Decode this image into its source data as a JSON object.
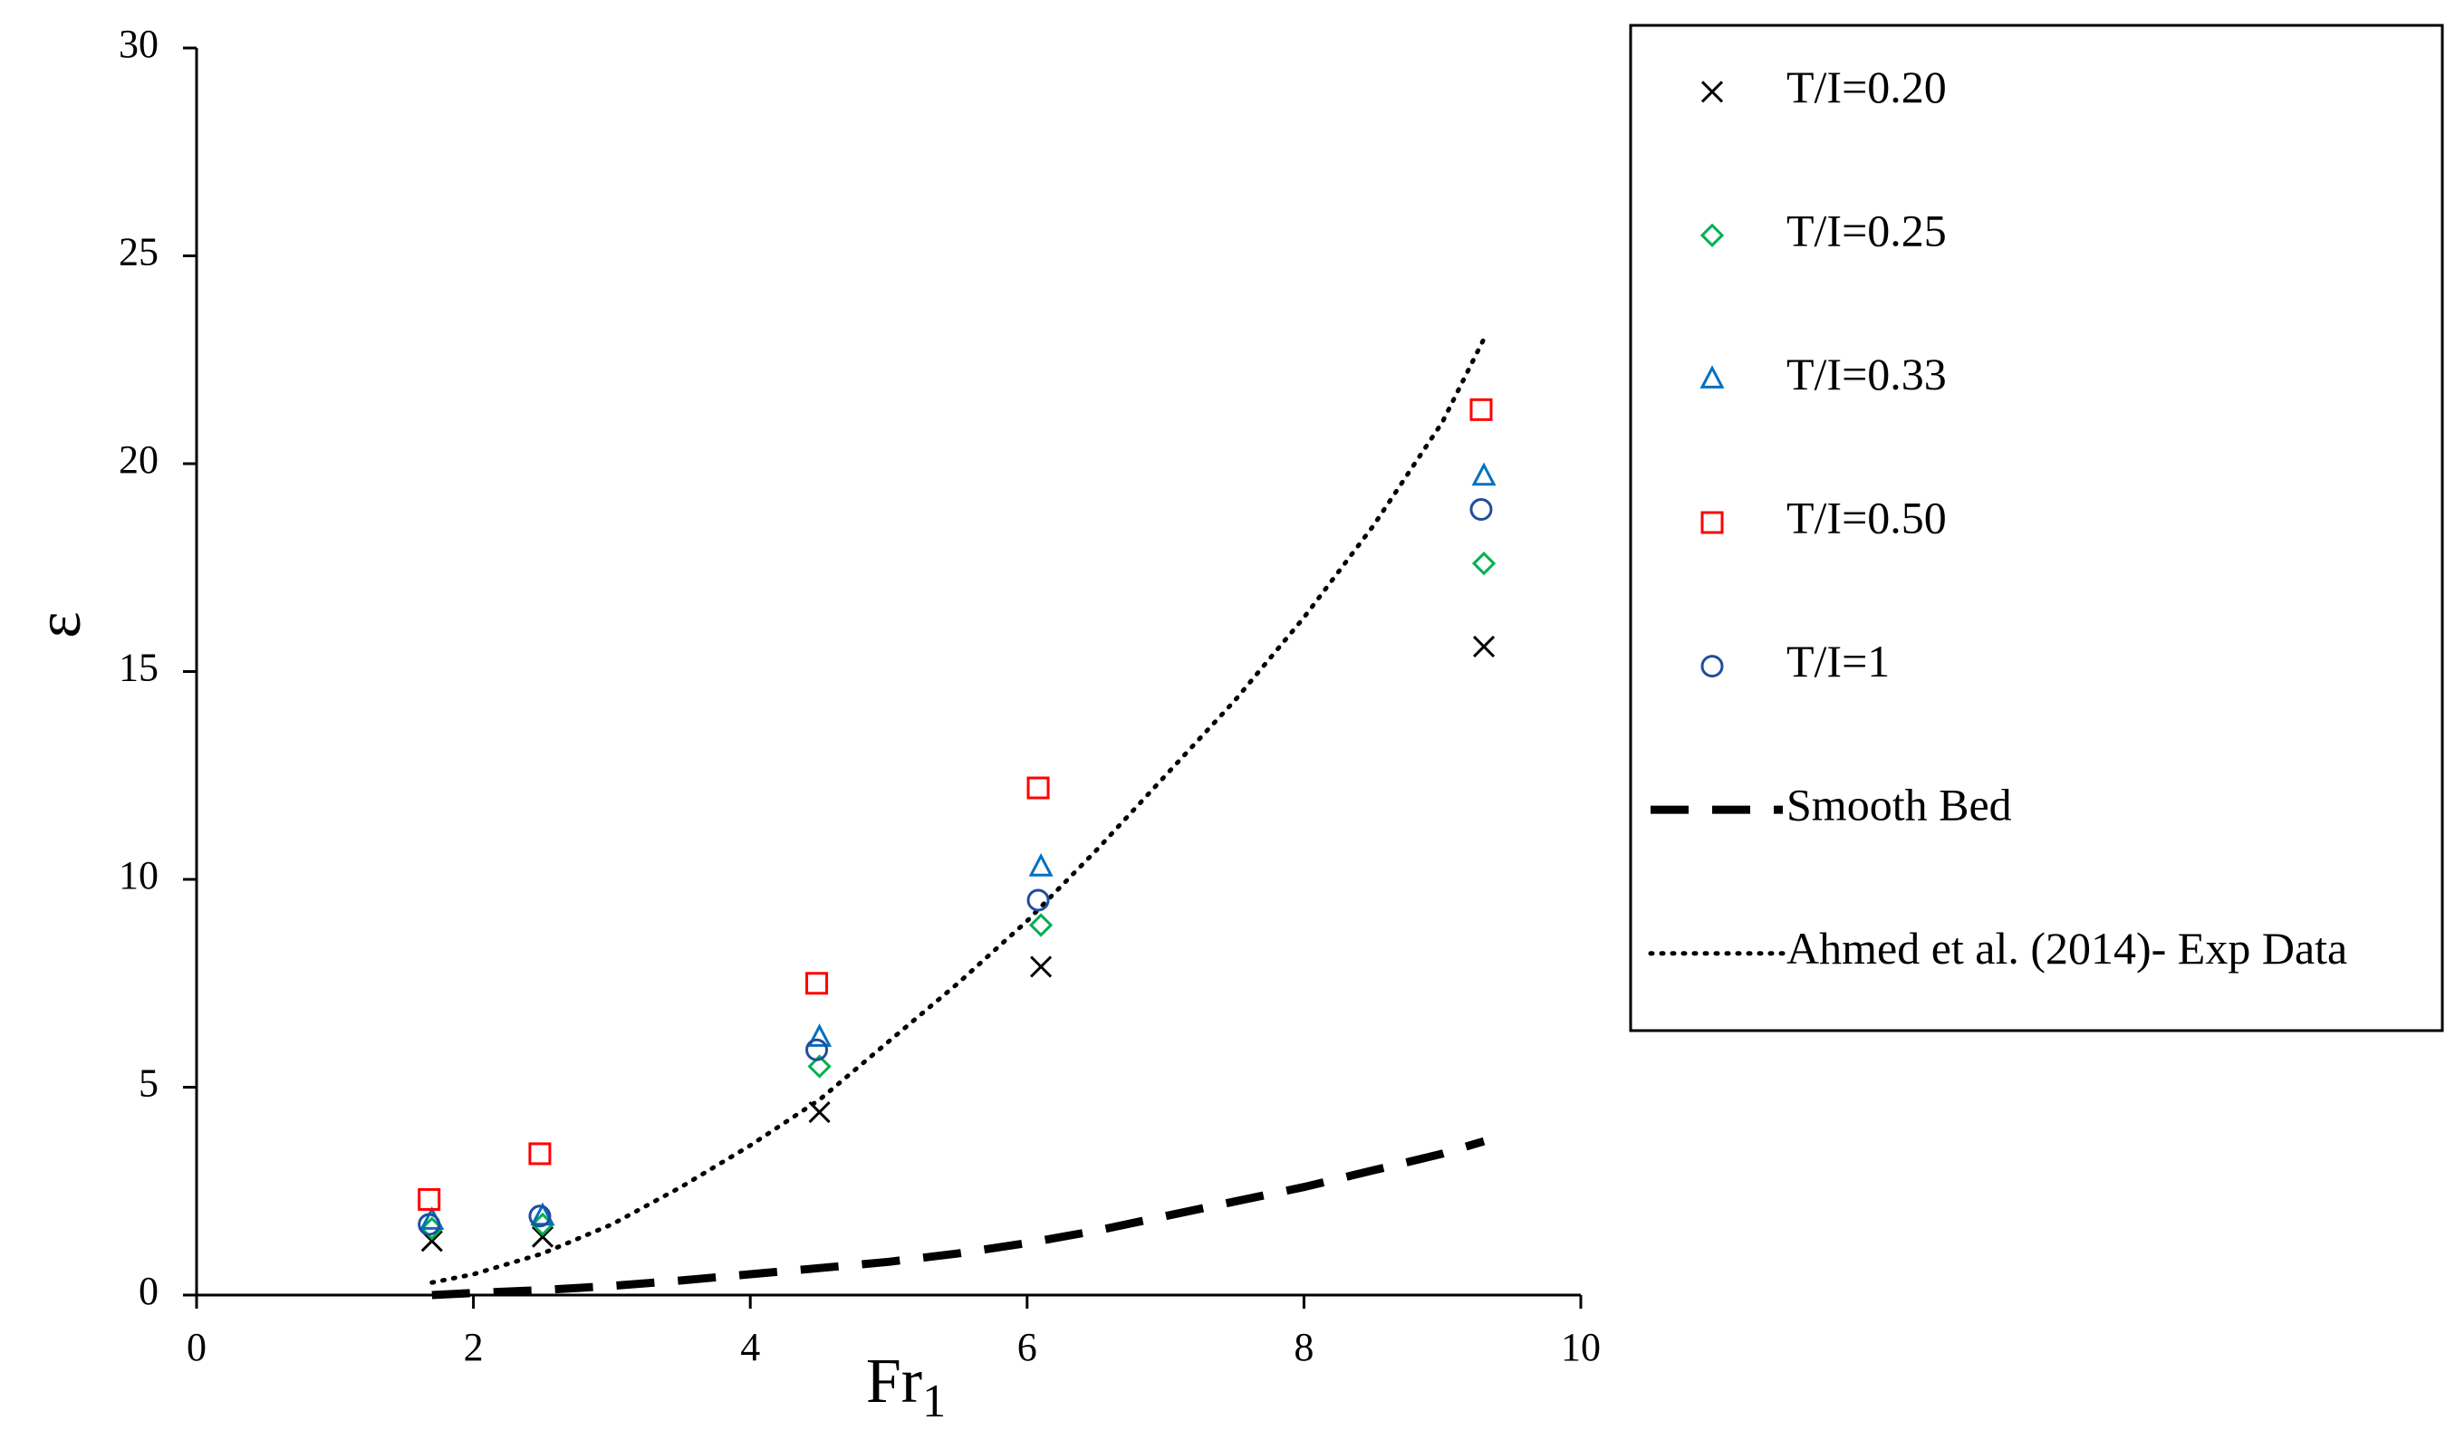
{
  "chart_data": {
    "type": "scatter",
    "title": "",
    "xlabel": "Fr",
    "xlabel_subscript": "1",
    "ylabel": "ε",
    "xlim": [
      0,
      10
    ],
    "ylim": [
      0,
      30
    ],
    "xticks": [
      0,
      2,
      4,
      6,
      8,
      10
    ],
    "yticks": [
      0,
      5,
      10,
      15,
      20,
      25,
      30
    ],
    "grid": false,
    "legend_position": "right",
    "series": [
      {
        "name": "T/I=0.20",
        "marker": "x",
        "color": "#000000",
        "x": [
          1.7,
          2.5,
          4.5,
          6.1,
          9.3
        ],
        "y": [
          1.3,
          1.4,
          4.4,
          7.9,
          15.6
        ]
      },
      {
        "name": "T/I=0.25",
        "marker": "diamond",
        "color": "#00b050",
        "x": [
          1.7,
          2.5,
          4.5,
          6.1,
          9.3
        ],
        "y": [
          1.6,
          1.7,
          5.5,
          8.9,
          17.6
        ]
      },
      {
        "name": "T/I=0.33",
        "marker": "triangle",
        "color": "#0070c0",
        "x": [
          1.7,
          2.5,
          4.5,
          6.1,
          9.3
        ],
        "y": [
          1.8,
          1.9,
          6.2,
          10.3,
          19.7
        ]
      },
      {
        "name": "T/I=0.50",
        "marker": "square",
        "color": "#ff0000",
        "x": [
          1.68,
          2.48,
          4.48,
          6.08,
          9.28
        ],
        "y": [
          2.3,
          3.4,
          7.5,
          12.2,
          21.3
        ]
      },
      {
        "name": "T/I=1",
        "marker": "circle",
        "color": "#1f4e9c",
        "x": [
          1.68,
          2.48,
          4.48,
          6.08,
          9.28
        ],
        "y": [
          1.7,
          1.9,
          5.9,
          9.5,
          18.9
        ]
      },
      {
        "name": "Smooth Bed",
        "line": "dashed",
        "color": "#000000",
        "x": [
          1.7,
          2.0,
          2.5,
          3.0,
          3.5,
          4.0,
          4.5,
          5.0,
          5.5,
          6.0,
          6.5,
          7.0,
          7.5,
          8.0,
          8.5,
          9.0,
          9.3
        ],
        "y": [
          0.0,
          0.05,
          0.12,
          0.22,
          0.35,
          0.5,
          0.65,
          0.8,
          1.0,
          1.25,
          1.55,
          1.9,
          2.25,
          2.6,
          3.0,
          3.4,
          3.7
        ]
      },
      {
        "name": "Ahmed et al. (2014)- Exp Data",
        "line": "dotted",
        "color": "#000000",
        "x": [
          1.7,
          2.0,
          2.5,
          3.0,
          3.5,
          4.0,
          4.5,
          5.0,
          5.5,
          6.0,
          6.5,
          7.0,
          7.5,
          8.0,
          8.5,
          9.0,
          9.3
        ],
        "y": [
          0.3,
          0.5,
          1.0,
          1.7,
          2.6,
          3.6,
          4.7,
          6.1,
          7.5,
          9.0,
          10.7,
          12.5,
          14.3,
          16.3,
          18.5,
          21.0,
          23.0
        ]
      }
    ]
  }
}
